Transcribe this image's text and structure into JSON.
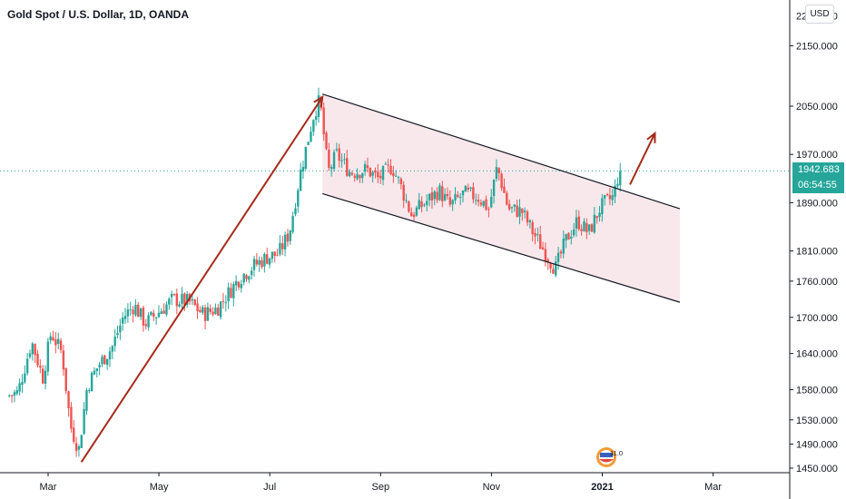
{
  "header": {
    "title": "Gold Spot / U.S. Dollar, 1D, OANDA",
    "currency": "USD"
  },
  "price_tag": {
    "price": "1942.683",
    "countdown": "06:54:55",
    "color": "#26a69a"
  },
  "badge": {
    "text": "11.0"
  },
  "chart_data": {
    "type": "candlestick",
    "ylim": [
      1450,
      2200
    ],
    "y_ticks": [
      "2150.000",
      "2050.000",
      "1970.000",
      "1890.000",
      "1810.000",
      "1760.000",
      "1700.000",
      "1640.000",
      "1580.000",
      "1530.000",
      "1490.000",
      "1450.000"
    ],
    "y_tick_top_partial": "2200.000",
    "x_ticks": [
      "Mar",
      "May",
      "Jul",
      "Sep",
      "Nov",
      "2021",
      "Mar"
    ],
    "x_tick_positions_months": [
      2,
      4,
      6,
      8,
      10,
      12,
      14
    ],
    "x_range_months": [
      1.3,
      15.3
    ],
    "up_color": "#26a69a",
    "down_color": "#ef5350",
    "last_price": 1942.683,
    "key_prices": [
      {
        "m": 1.3,
        "v": 1570
      },
      {
        "m": 1.5,
        "v": 1575
      },
      {
        "m": 1.75,
        "v": 1660
      },
      {
        "m": 1.95,
        "v": 1600
      },
      {
        "m": 2.1,
        "v": 1675
      },
      {
        "m": 2.3,
        "v": 1640
      },
      {
        "m": 2.45,
        "v": 1520
      },
      {
        "m": 2.6,
        "v": 1480
      },
      {
        "m": 2.75,
        "v": 1585
      },
      {
        "m": 2.95,
        "v": 1620
      },
      {
        "m": 3.2,
        "v": 1650
      },
      {
        "m": 3.4,
        "v": 1700
      },
      {
        "m": 3.6,
        "v": 1720
      },
      {
        "m": 3.8,
        "v": 1690
      },
      {
        "m": 4.0,
        "v": 1705
      },
      {
        "m": 4.3,
        "v": 1730
      },
      {
        "m": 4.6,
        "v": 1725
      },
      {
        "m": 4.85,
        "v": 1705
      },
      {
        "m": 5.1,
        "v": 1715
      },
      {
        "m": 5.3,
        "v": 1740
      },
      {
        "m": 5.5,
        "v": 1765
      },
      {
        "m": 5.75,
        "v": 1785
      },
      {
        "m": 6.0,
        "v": 1800
      },
      {
        "m": 6.2,
        "v": 1805
      },
      {
        "m": 6.4,
        "v": 1840
      },
      {
        "m": 6.6,
        "v": 1940
      },
      {
        "m": 6.85,
        "v": 2040
      },
      {
        "m": 6.95,
        "v": 2060
      },
      {
        "m": 7.1,
        "v": 1940
      },
      {
        "m": 7.25,
        "v": 1970
      },
      {
        "m": 7.5,
        "v": 1940
      },
      {
        "m": 7.8,
        "v": 1945
      },
      {
        "m": 8.0,
        "v": 1930
      },
      {
        "m": 8.25,
        "v": 1950
      },
      {
        "m": 8.4,
        "v": 1920
      },
      {
        "m": 8.6,
        "v": 1870
      },
      {
        "m": 8.85,
        "v": 1890
      },
      {
        "m": 9.1,
        "v": 1910
      },
      {
        "m": 9.3,
        "v": 1885
      },
      {
        "m": 9.55,
        "v": 1905
      },
      {
        "m": 9.8,
        "v": 1900
      },
      {
        "m": 10.0,
        "v": 1880
      },
      {
        "m": 10.15,
        "v": 1950
      },
      {
        "m": 10.35,
        "v": 1880
      },
      {
        "m": 10.6,
        "v": 1875
      },
      {
        "m": 10.8,
        "v": 1840
      },
      {
        "m": 11.0,
        "v": 1810
      },
      {
        "m": 11.2,
        "v": 1780
      },
      {
        "m": 11.4,
        "v": 1830
      },
      {
        "m": 11.6,
        "v": 1860
      },
      {
        "m": 11.8,
        "v": 1840
      },
      {
        "m": 12.0,
        "v": 1880
      },
      {
        "m": 12.1,
        "v": 1890
      },
      {
        "m": 12.25,
        "v": 1900
      },
      {
        "m": 12.35,
        "v": 1942.683
      }
    ],
    "annotations": {
      "rally_arrow": {
        "from": {
          "m": 2.6,
          "v": 1460
        },
        "to": {
          "m": 6.95,
          "v": 2065
        },
        "color": "#a52a1a"
      },
      "breakout_arrow": {
        "from": {
          "m": 12.5,
          "v": 1920
        },
        "to": {
          "m": 12.95,
          "v": 2005
        },
        "color": "#a52a1a"
      },
      "channel_upper": {
        "from": {
          "m": 6.95,
          "v": 2070
        },
        "to": {
          "m": 13.4,
          "v": 1880
        }
      },
      "channel_lower": {
        "from": {
          "m": 6.95,
          "v": 1905
        },
        "to": {
          "m": 13.4,
          "v": 1725
        }
      },
      "channel_fill": "#f8e8ec"
    }
  }
}
